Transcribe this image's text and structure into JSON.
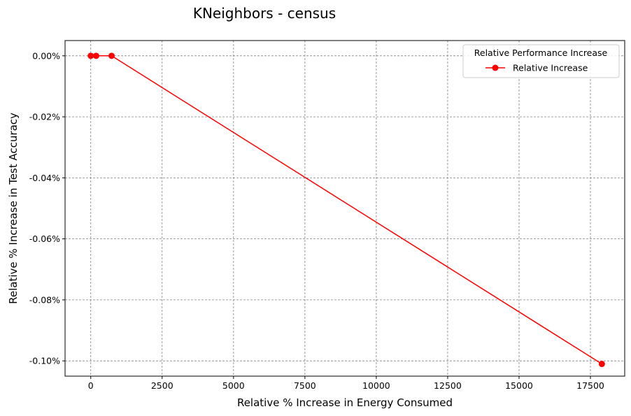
{
  "chart_data": {
    "type": "line",
    "title": "KNeighbors - census",
    "xlabel": "Relative % Increase in Energy Consumed",
    "ylabel": "Relative % Increase in Test Accuracy",
    "xlim": [
      -900,
      18700
    ],
    "ylim": [
      -0.105,
      0.005
    ],
    "xticks": [
      0,
      2500,
      5000,
      7500,
      10000,
      12500,
      15000,
      17500
    ],
    "xtick_labels": [
      "0",
      "2500",
      "5000",
      "7500",
      "10000",
      "12500",
      "15000",
      "17500"
    ],
    "yticks": [
      0,
      -0.02,
      -0.04,
      -0.06,
      -0.08,
      -0.1
    ],
    "ytick_labels": [
      "0.00%",
      "-0.02%",
      "-0.04%",
      "-0.06%",
      "-0.08%",
      "-0.10%"
    ],
    "grid": true,
    "legend": {
      "title": "Relative Performance Increase",
      "position": "top-right"
    },
    "series": [
      {
        "name": "Relative Increase",
        "color": "#ff0000",
        "marker": "circle",
        "x": [
          0,
          190,
          730,
          17900
        ],
        "y": [
          0,
          0,
          0,
          -0.101
        ]
      }
    ]
  }
}
